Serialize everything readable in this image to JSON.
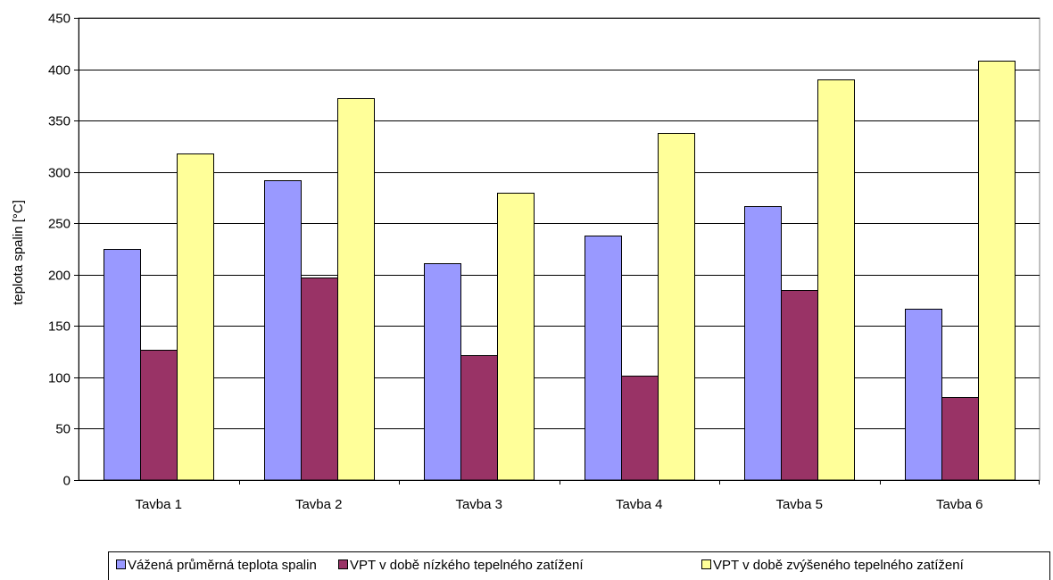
{
  "chart_data": {
    "type": "bar",
    "title": "",
    "xlabel": "",
    "ylabel": "teplota spalin [°C]",
    "ylim": [
      0,
      450
    ],
    "yticks": [
      0,
      50,
      100,
      150,
      200,
      250,
      300,
      350,
      400,
      450
    ],
    "grid": true,
    "legend_position": "bottom",
    "categories": [
      "Tavba 1",
      "Tavba 2",
      "Tavba 3",
      "Tavba 4",
      "Tavba 5",
      "Tavba 6"
    ],
    "series": [
      {
        "name": "Vážená průměrná teplota spalin",
        "color": "#9999ff",
        "values": [
          225,
          292,
          211,
          238,
          267,
          167
        ]
      },
      {
        "name": "VPT v době nízkého tepelného zatížení",
        "color": "#993366",
        "values": [
          127,
          197,
          122,
          102,
          185,
          81
        ]
      },
      {
        "name": "VPT v době zvýšeného tepelného zatížení",
        "color": "#ffff99",
        "values": [
          318,
          372,
          280,
          338,
          390,
          408
        ]
      }
    ]
  }
}
